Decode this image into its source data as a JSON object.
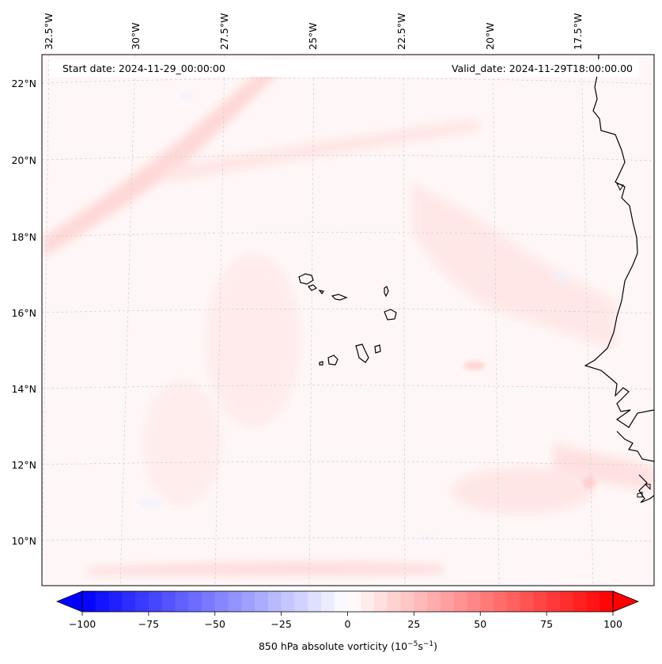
{
  "header": {
    "start_date": "Start date: 2024-11-29_00:00:00",
    "valid_date": "Valid_date: 2024-11-29T18:00:00.00"
  },
  "map": {
    "longitude_labels": [
      "32.5°W",
      "30°W",
      "27.5°W",
      "25°W",
      "22.5°W",
      "20°W",
      "17.5°W"
    ],
    "latitude_labels": [
      "22°N",
      "20°N",
      "18°N",
      "16°N",
      "14°N",
      "12°N",
      "10°N"
    ],
    "gridlines": true,
    "coastline_color": "#000000"
  },
  "colorbar": {
    "label_prefix": "850 hPa absolute vorticity (10",
    "label_exp1": "−5",
    "label_mid": "s",
    "label_exp2": "−1",
    "label_suffix": ")",
    "ticks": [
      "−100",
      "−75",
      "−50",
      "−25",
      "0",
      "25",
      "50",
      "75",
      "100"
    ],
    "min": -100,
    "max": 100,
    "levels": 41,
    "low_color": "#0000ff",
    "mid_color": "#ffffff",
    "high_color": "#ff0000",
    "extend": "both"
  }
}
